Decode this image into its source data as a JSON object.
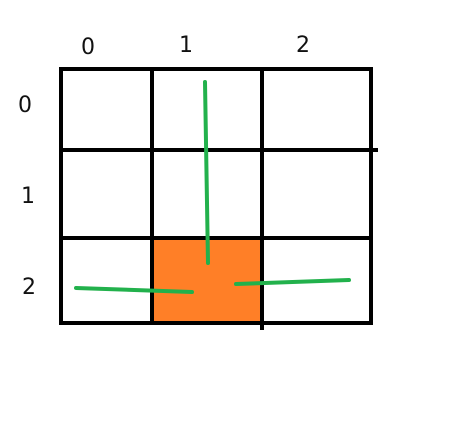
{
  "grid": {
    "rows": 3,
    "cols": 3,
    "column_labels": [
      "0",
      "1",
      "2"
    ],
    "row_labels": [
      "0",
      "1",
      "2"
    ],
    "filled_cells": [
      {
        "row": 2,
        "col": 1,
        "color": "#ff7f27"
      }
    ],
    "line_color": "#000000"
  },
  "strokes": {
    "color": "#22b14c"
  }
}
